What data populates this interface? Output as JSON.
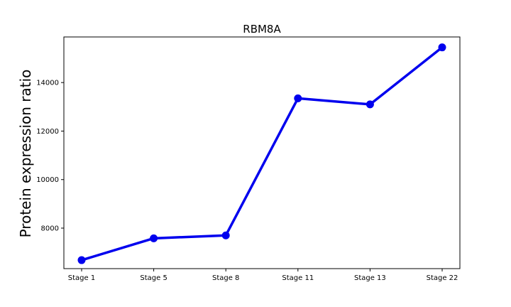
{
  "chart_data": {
    "type": "line",
    "title": "RBM8A",
    "xlabel": "",
    "ylabel": "Protein expression ratio",
    "categories": [
      "Stage 1",
      "Stage 5",
      "Stage 8",
      "Stage 11",
      "Stage 13",
      "Stage 22"
    ],
    "series": [
      {
        "values": [
          6680,
          7580,
          7700,
          13350,
          13100,
          15450
        ],
        "color": "#0000ee"
      }
    ],
    "yticks": [
      8000,
      10000,
      12000,
      14000
    ],
    "ytick_labels": [
      "8000",
      "10000",
      "12000",
      "14000"
    ],
    "ylim": [
      6330,
      15880
    ],
    "grid": false,
    "legend": "none"
  }
}
